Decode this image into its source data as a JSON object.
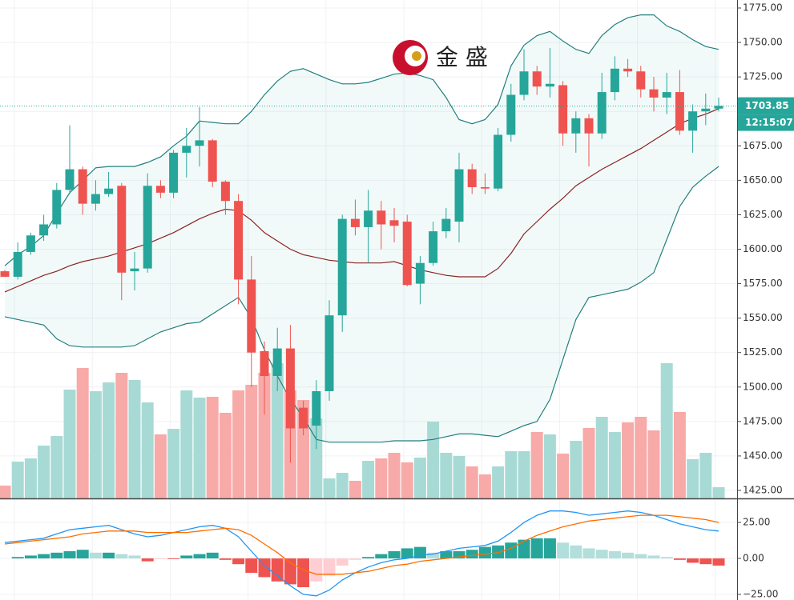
{
  "chart_data": [
    {
      "type": "candlestick",
      "ylim": [
        1419.2,
        1780.8
      ],
      "yticks": [
        {
          "value": 1775,
          "label": "1775.00"
        },
        {
          "value": 1750,
          "label": "1750.00"
        },
        {
          "value": 1725,
          "label": "1725.00"
        },
        {
          "value": 1700,
          "label": "1700.00"
        },
        {
          "value": 1675,
          "label": "1675.00"
        },
        {
          "value": 1650,
          "label": "1650.00"
        },
        {
          "value": 1625,
          "label": "1625.00"
        },
        {
          "value": 1600,
          "label": "1600.00"
        },
        {
          "value": 1575,
          "label": "1575.00"
        },
        {
          "value": 1550,
          "label": "1550.00"
        },
        {
          "value": 1525,
          "label": "1525.00"
        },
        {
          "value": 1500,
          "label": "1500.00"
        },
        {
          "value": 1475,
          "label": "1475.00"
        },
        {
          "value": 1450,
          "label": "1450.00"
        },
        {
          "value": 1425,
          "label": "1425.00"
        }
      ],
      "up_color": "#26a69a",
      "down_color": "#ef5350",
      "open": [
        1584,
        1580,
        1598,
        1610,
        1618,
        1643,
        1658,
        1633,
        1640,
        1646,
        1584,
        1586,
        1646,
        1641,
        1670,
        1675,
        1679,
        1649,
        1635,
        1578,
        1526,
        1508,
        1528,
        1485,
        1472,
        1497,
        1552,
        1622,
        1616,
        1628,
        1621,
        1620,
        1575,
        1590,
        1613,
        1620,
        1658,
        1645,
        1644,
        1683,
        1712,
        1729,
        1718,
        1719,
        1684,
        1695,
        1684,
        1714,
        1731,
        1729,
        1716,
        1710,
        1714,
        1686,
        1700,
        1702
      ],
      "high": [
        1585,
        1605,
        1612,
        1625,
        1648,
        1690,
        1660,
        1650,
        1656,
        1648,
        1598,
        1655,
        1650,
        1672,
        1688,
        1703,
        1680,
        1650,
        1640,
        1595,
        1533,
        1543,
        1545,
        1490,
        1505,
        1563,
        1625,
        1636,
        1643,
        1635,
        1630,
        1625,
        1595,
        1620,
        1630,
        1670,
        1662,
        1655,
        1688,
        1720,
        1745,
        1733,
        1746,
        1722,
        1700,
        1698,
        1728,
        1740,
        1738,
        1733,
        1725,
        1728,
        1730,
        1705,
        1713,
        1710
      ],
      "low": [
        1580,
        1578,
        1596,
        1606,
        1615,
        1640,
        1625,
        1628,
        1638,
        1563,
        1570,
        1583,
        1637,
        1637,
        1652,
        1660,
        1645,
        1625,
        1560,
        1500,
        1480,
        1497,
        1445,
        1465,
        1455,
        1490,
        1540,
        1610,
        1590,
        1600,
        1605,
        1573,
        1560,
        1588,
        1608,
        1605,
        1640,
        1640,
        1642,
        1678,
        1708,
        1712,
        1710,
        1675,
        1670,
        1660,
        1680,
        1708,
        1725,
        1710,
        1700,
        1698,
        1683,
        1670,
        1690,
        1700
      ],
      "close": [
        1580,
        1598,
        1610,
        1618,
        1643,
        1658,
        1633,
        1640,
        1644,
        1583,
        1586,
        1646,
        1641,
        1670,
        1675,
        1679,
        1649,
        1635,
        1578,
        1525,
        1508,
        1528,
        1470,
        1470,
        1497,
        1552,
        1622,
        1616,
        1628,
        1618,
        1617,
        1574,
        1590,
        1613,
        1622,
        1658,
        1645,
        1644,
        1683,
        1712,
        1729,
        1718,
        1720,
        1684,
        1695,
        1684,
        1714,
        1731,
        1729,
        1716,
        1710,
        1714,
        1686,
        1700,
        1702,
        1704
      ],
      "volume": [
        16,
        46,
        50,
        66,
        78,
        136,
        163,
        134,
        145,
        157,
        148,
        120,
        80,
        87,
        135,
        126,
        127,
        107,
        135,
        142,
        157,
        169,
        135,
        123,
        100,
        25,
        32,
        22,
        47,
        50,
        57,
        45,
        51,
        96,
        57,
        53,
        40,
        30,
        40,
        59,
        59,
        83,
        80,
        56,
        72,
        88,
        102,
        83,
        95,
        102,
        85,
        169,
        108,
        49,
        57,
        14
      ],
      "vlim": [
        0,
        200
      ],
      "bands": {
        "upper": [
          1588,
          1596,
          1602,
          1610,
          1626,
          1641,
          1650,
          1659,
          1660,
          1660,
          1660,
          1663,
          1667,
          1675,
          1682,
          1693,
          1692,
          1691,
          1691,
          1700,
          1712,
          1722,
          1729,
          1731,
          1727,
          1723,
          1720,
          1720,
          1721,
          1724,
          1727,
          1728,
          1726,
          1723,
          1710,
          1694,
          1691,
          1694,
          1705,
          1733,
          1748,
          1755,
          1758,
          1751,
          1745,
          1742,
          1755,
          1763,
          1768,
          1770,
          1770,
          1762,
          1758,
          1752,
          1747,
          1745
        ],
        "middle": [
          1569,
          1573,
          1577,
          1581,
          1584,
          1588,
          1591,
          1593,
          1595,
          1598,
          1601,
          1604,
          1608,
          1612,
          1617,
          1622,
          1626,
          1629,
          1628,
          1621,
          1612,
          1606,
          1600,
          1596,
          1594,
          1592,
          1591,
          1590,
          1590,
          1590,
          1591,
          1588,
          1585,
          1583,
          1581,
          1580,
          1580,
          1580,
          1586,
          1597,
          1611,
          1620,
          1629,
          1637,
          1646,
          1652,
          1658,
          1663,
          1668,
          1673,
          1679,
          1685,
          1691,
          1695,
          1698,
          1702
        ],
        "lower": [
          1551,
          1549,
          1547,
          1545,
          1535,
          1530,
          1529,
          1529,
          1529,
          1529,
          1530,
          1535,
          1540,
          1543,
          1546,
          1547,
          1553,
          1559,
          1565,
          1550,
          1527,
          1508,
          1491,
          1478,
          1462,
          1460,
          1460,
          1460,
          1460,
          1460,
          1461,
          1461,
          1461,
          1462,
          1464,
          1466,
          1466,
          1465,
          1464,
          1468,
          1472,
          1475,
          1491,
          1520,
          1549,
          1565,
          1567,
          1569,
          1571,
          1576,
          1583,
          1607,
          1631,
          1645,
          1653,
          1660
        ]
      },
      "last_price": 1703.85,
      "countdown": "12:15:07",
      "logo": "金 盛"
    },
    {
      "type": "macd",
      "ylim": [
        -28.9,
        40.6
      ],
      "yticks": [
        {
          "value": 25,
          "label": "25.00"
        },
        {
          "value": 0,
          "label": "0.00"
        },
        {
          "value": -25,
          "label": "−25.00"
        }
      ],
      "histogram": [
        0,
        1,
        2,
        3,
        4,
        5,
        6,
        4,
        4,
        3,
        2,
        -2,
        -0.5,
        -0.5,
        2,
        3,
        4,
        -1,
        -4,
        -10,
        -13,
        -16,
        -18,
        -20,
        -16,
        -12,
        -5,
        -1,
        1,
        3,
        5,
        7,
        8,
        4,
        5,
        5,
        6,
        8,
        9,
        11,
        13,
        14,
        14,
        11,
        9,
        7,
        6,
        5,
        4,
        3,
        2,
        1,
        -1,
        -3,
        -4,
        -5
      ],
      "macd": [
        11,
        12,
        13,
        14,
        17,
        20,
        21,
        22,
        23,
        20,
        17,
        15,
        16,
        18,
        20,
        22,
        23,
        21,
        15,
        5,
        -5,
        -12,
        -19,
        -25,
        -26,
        -22,
        -15,
        -10,
        -6,
        -3,
        -1,
        0,
        2,
        3,
        5,
        7,
        8,
        9,
        12,
        18,
        25,
        30,
        33,
        33,
        32,
        30,
        31,
        32,
        33,
        32,
        30,
        27,
        24,
        22,
        20,
        19
      ],
      "signal": [
        10,
        11,
        12,
        13,
        14,
        15,
        17,
        18,
        19,
        19,
        19,
        18,
        18,
        18,
        18,
        19,
        20,
        21,
        20,
        16,
        10,
        4,
        -3,
        -8,
        -11,
        -11,
        -11,
        -10,
        -9,
        -7,
        -5,
        -4,
        -2,
        -1,
        0,
        1,
        2,
        3,
        4,
        7,
        12,
        16,
        19,
        22,
        24,
        26,
        27,
        28,
        29,
        30,
        30,
        30,
        29,
        28,
        27,
        25
      ],
      "macd_color": "#2196f3",
      "signal_color": "#ff6d00"
    }
  ]
}
